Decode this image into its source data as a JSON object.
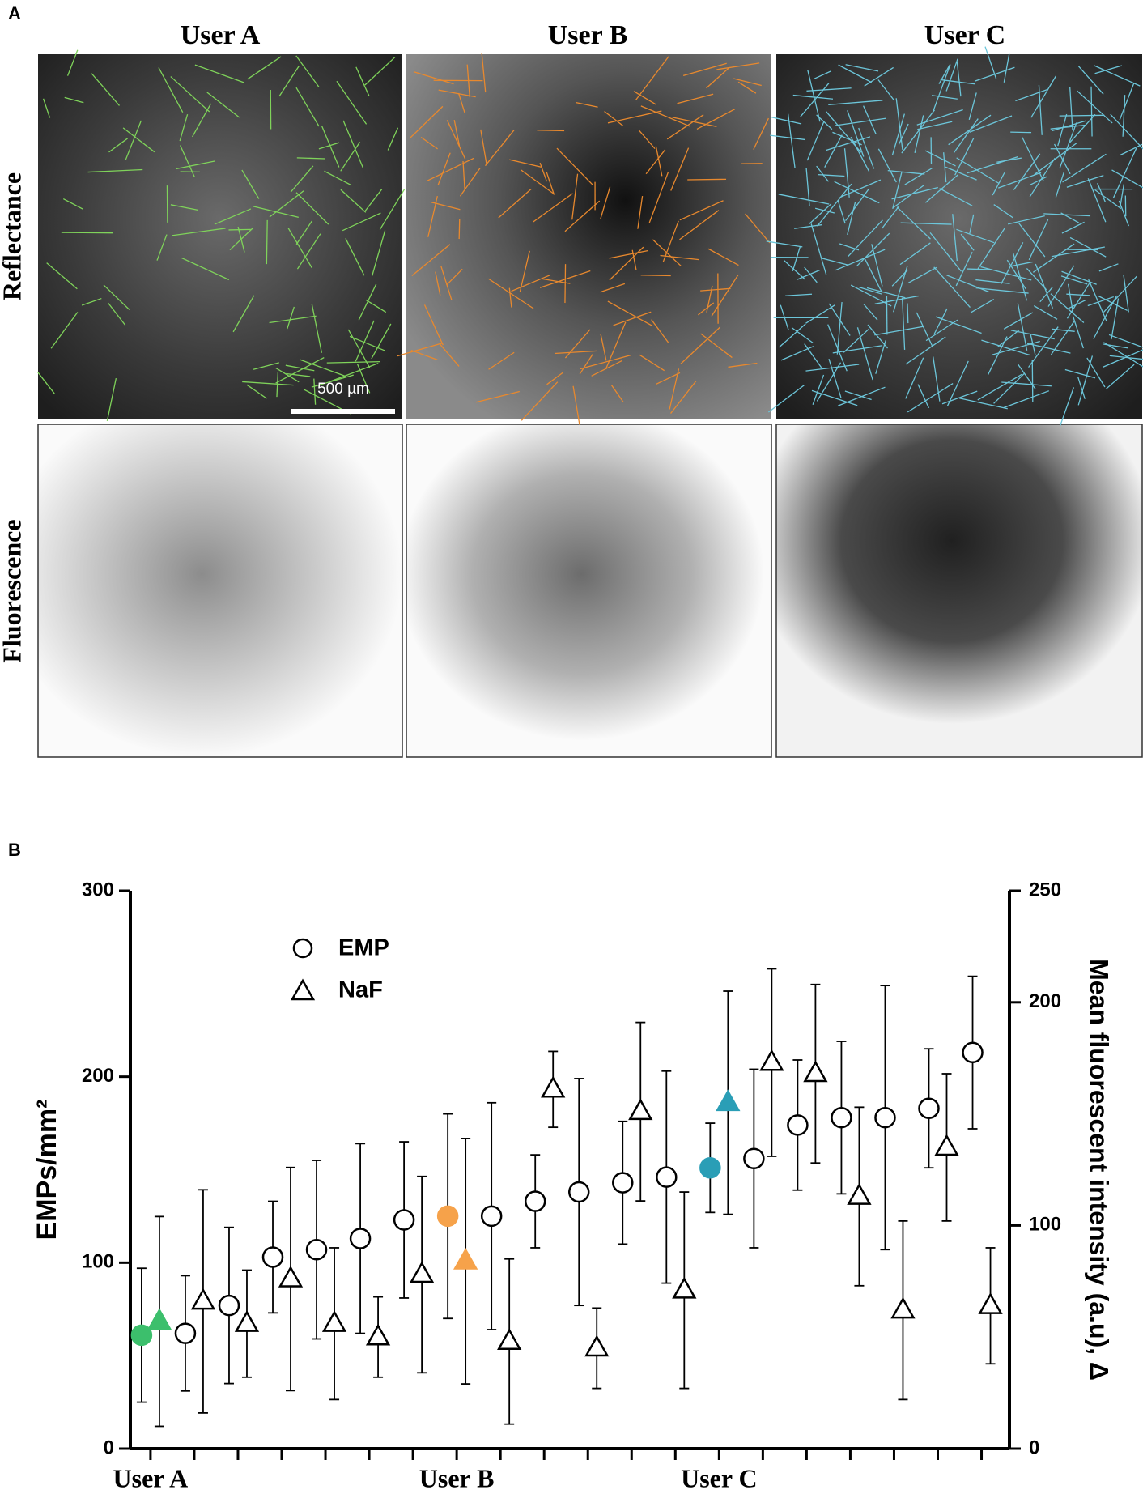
{
  "panel_a": {
    "label": "A",
    "columns": [
      "User A",
      "User B",
      "User C"
    ],
    "rows": [
      "Reflectance",
      "Fluorescence"
    ],
    "scale_bar": "500 µm"
  },
  "chart_data": {
    "type": "scatter",
    "panel_label": "B",
    "categories": [
      "User A",
      null,
      null,
      null,
      null,
      null,
      null,
      "User B",
      null,
      null,
      null,
      null,
      null,
      "User C",
      null,
      null,
      null,
      null,
      null,
      null
    ],
    "y_label": "EMPs/mm²",
    "y2_label": "Mean fluorescent intensity (a.u), Δ",
    "ylim": [
      0,
      300
    ],
    "yticks": [
      0,
      100,
      200,
      300
    ],
    "y2lim": [
      0,
      250
    ],
    "y2ticks": [
      0,
      100,
      200,
      250
    ],
    "series": [
      {
        "name": "EMP",
        "marker": "circle",
        "color": "#000000",
        "values": [
          61,
          62,
          77,
          103,
          107,
          113,
          123,
          125,
          125,
          133,
          138,
          143,
          146,
          151,
          156,
          174,
          178,
          178,
          183,
          213
        ],
        "errors": [
          36,
          31,
          42,
          30,
          48,
          51,
          42,
          55,
          61,
          25,
          61,
          33,
          57,
          24,
          48,
          35,
          41,
          71,
          32,
          41
        ],
        "colors": [
          "#3cbf6c",
          null,
          null,
          null,
          null,
          null,
          null,
          "#f6a24a",
          null,
          null,
          null,
          null,
          null,
          "#2a9eb6",
          null,
          null,
          null,
          null,
          null,
          null
        ]
      },
      {
        "name": "NaF",
        "marker": "triangle",
        "axis": "y2",
        "color": "#000000",
        "values": [
          57,
          66,
          56,
          76,
          56,
          50,
          78,
          84,
          48,
          161,
          45,
          151,
          71,
          155,
          173,
          168,
          113,
          62,
          135,
          64
        ],
        "errors": [
          47,
          50,
          24,
          50,
          34,
          18,
          44,
          55,
          37,
          17,
          18,
          40,
          44,
          50,
          42,
          40,
          40,
          40,
          33,
          26
        ],
        "colors": [
          "#3cbf6c",
          null,
          null,
          null,
          null,
          null,
          null,
          "#f6a24a",
          null,
          null,
          null,
          null,
          null,
          "#2a9eb6",
          null,
          null,
          null,
          null,
          null,
          null
        ]
      }
    ]
  }
}
